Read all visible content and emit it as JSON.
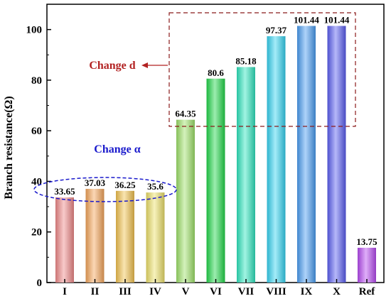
{
  "chart_data": {
    "type": "bar",
    "title": "",
    "xlabel": "",
    "ylabel": "Branch resistance(Ω)",
    "ylim": [
      0,
      110
    ],
    "yticks": [
      0,
      20,
      40,
      60,
      80,
      100
    ],
    "grid": false,
    "categories": [
      "I",
      "II",
      "III",
      "IV",
      "V",
      "VI",
      "VII",
      "VIII",
      "IX",
      "X",
      "Ref"
    ],
    "values": [
      33.65,
      37.03,
      36.25,
      35.6,
      64.35,
      80.6,
      85.18,
      97.37,
      101.44,
      101.44,
      13.75
    ],
    "value_labels": [
      "33.65",
      "37.03",
      "36.25",
      "35.6",
      "64.35",
      "80.6",
      "85.18",
      "97.37",
      "101.44",
      "101.44",
      "13.75"
    ],
    "bar_colors": [
      "#f08a8a",
      "#f5a65b",
      "#f2c24f",
      "#eee16a",
      "#9fe26a",
      "#22d84a",
      "#2ee6bf",
      "#35d4f2",
      "#4a9ef2",
      "#5a5ef2",
      "#b84af2"
    ],
    "annotations": [
      {
        "text": "Change d",
        "color": "#b22222"
      },
      {
        "text": "Change α",
        "color": "#1a1acc"
      }
    ]
  }
}
